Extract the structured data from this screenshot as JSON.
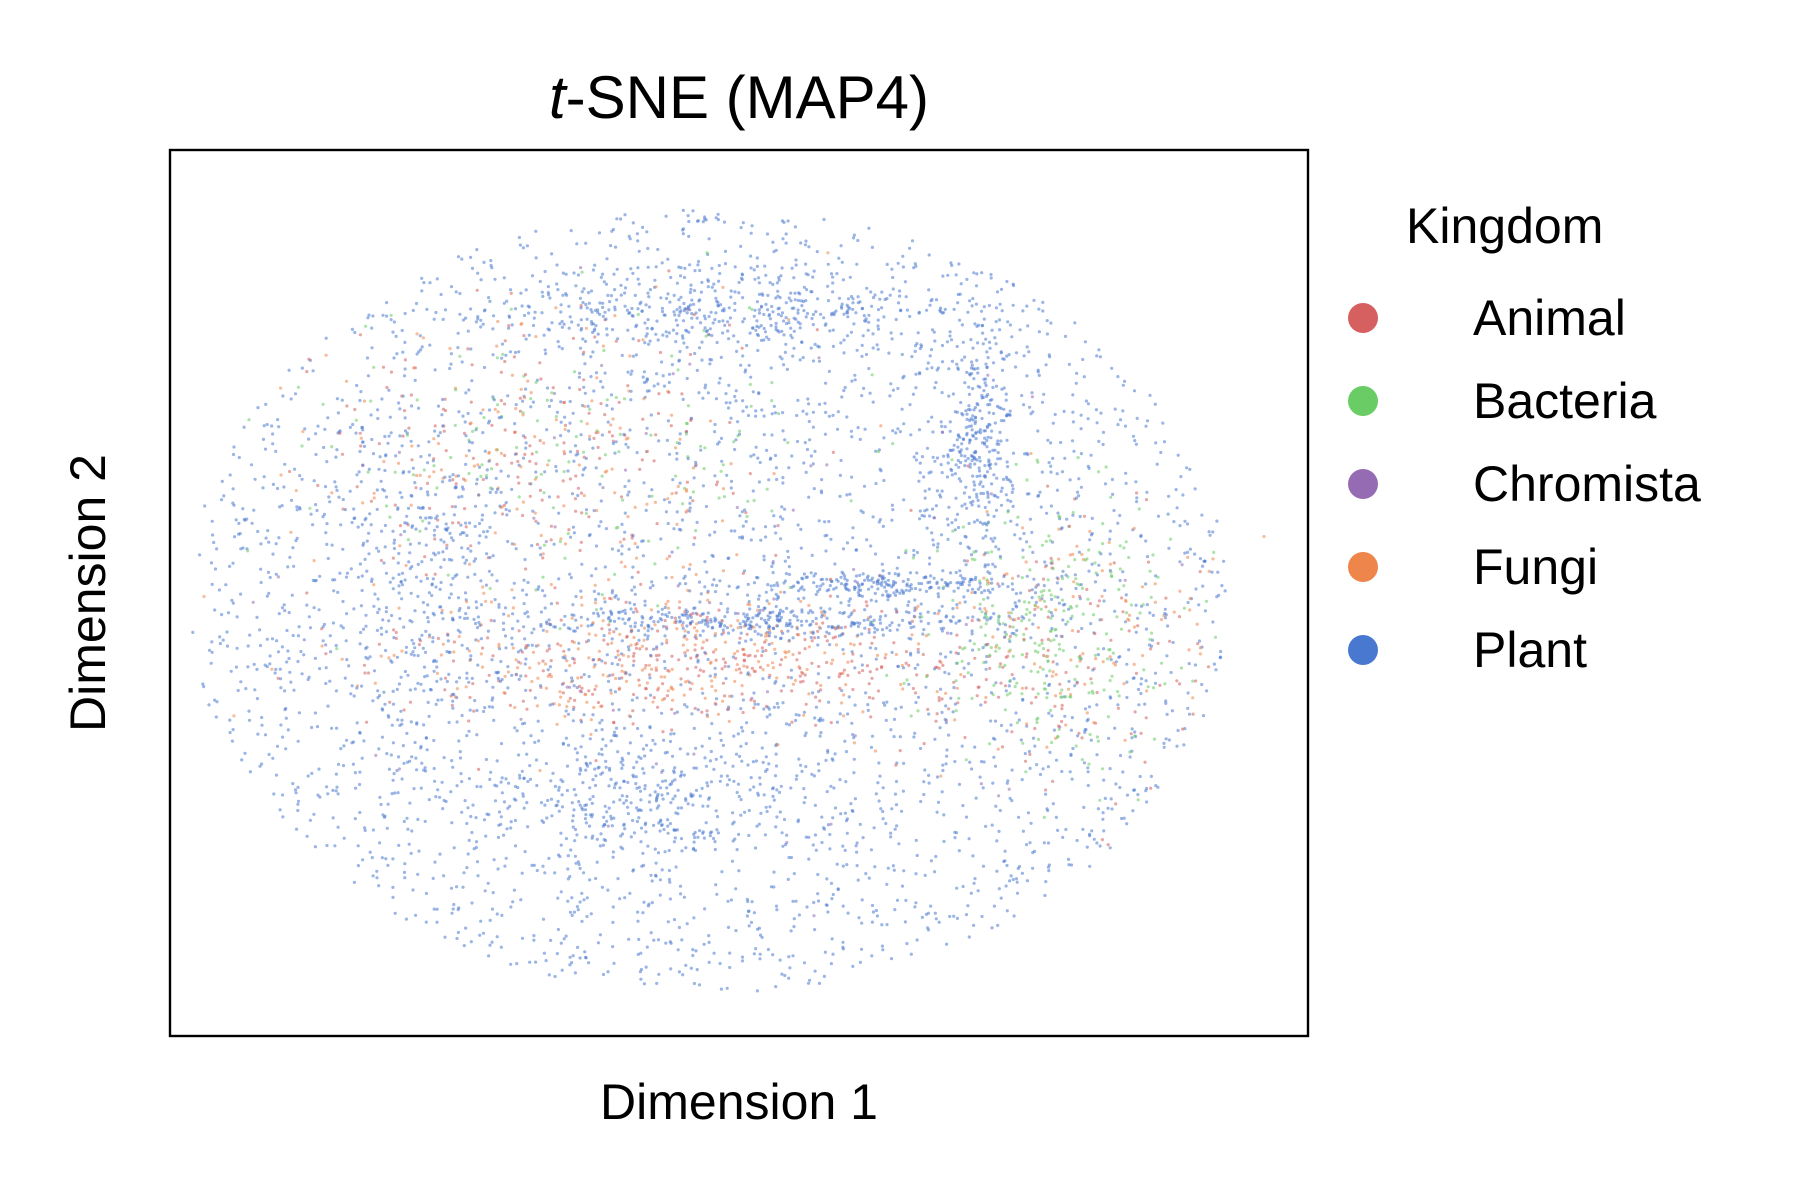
{
  "chart_data": {
    "type": "scatter",
    "title_italic": "t",
    "title_rest": "-SNE (MAP4)",
    "xlabel": "Dimension 1",
    "ylabel": "Dimension 2",
    "xticks": "none",
    "yticks": "none",
    "grid": false,
    "legend": {
      "title": "Kingdom",
      "placement": "outside-right",
      "entries": [
        {
          "name": "Animal",
          "color": "#d65f5f"
        },
        {
          "name": "Bacteria",
          "color": "#6acc64"
        },
        {
          "name": "Chromista",
          "color": "#956cb4"
        },
        {
          "name": "Fungi",
          "color": "#ee854a"
        },
        {
          "name": "Plant",
          "color": "#4878d0"
        }
      ]
    },
    "point_opacity": 0.55,
    "series": [
      {
        "name": "Plant",
        "color": "#4878d0",
        "distribution": "disk",
        "center": [
          -0.06,
          -0.02
        ],
        "radii": [
          1.0,
          0.97
        ],
        "weight": 0.72,
        "clusters": [
          {
            "center": [
              -0.02,
              0.7
            ],
            "spread": [
              0.45,
              0.1
            ],
            "weight": 0.08
          },
          {
            "center": [
              0.05,
              -0.07
            ],
            "spread": [
              0.48,
              0.04
            ],
            "weight": 0.07
          },
          {
            "center": [
              0.46,
              0.38
            ],
            "spread": [
              0.07,
              0.28
            ],
            "weight": 0.06
          },
          {
            "center": [
              -0.2,
              -0.5
            ],
            "spread": [
              0.38,
              0.16
            ],
            "weight": 0.07
          },
          {
            "center": [
              -0.6,
              0.05
            ],
            "spread": [
              0.14,
              0.4
            ],
            "weight": 0.05
          },
          {
            "center": [
              0.25,
              0.02
            ],
            "spread": [
              0.3,
              0.03
            ],
            "weight": 0.04
          }
        ]
      },
      {
        "name": "Animal",
        "color": "#d65f5f",
        "distribution": "clusters",
        "center": [
          0.0,
          -0.18
        ],
        "radii": [
          0.9,
          0.6
        ],
        "weight": 0.09,
        "clusters": [
          {
            "center": [
              -0.05,
              -0.18
            ],
            "spread": [
              0.55,
              0.14
            ],
            "weight": 0.5
          },
          {
            "center": [
              -0.4,
              0.35
            ],
            "spread": [
              0.4,
              0.35
            ],
            "weight": 0.3
          },
          {
            "center": [
              0.6,
              -0.15
            ],
            "spread": [
              0.3,
              0.3
            ],
            "weight": 0.2
          }
        ]
      },
      {
        "name": "Bacteria",
        "color": "#6acc64",
        "distribution": "clusters",
        "center": [
          0.62,
          -0.05
        ],
        "radii": [
          0.35,
          0.5
        ],
        "weight": 0.06,
        "clusters": [
          {
            "center": [
              0.6,
              -0.08
            ],
            "spread": [
              0.22,
              0.3
            ],
            "weight": 0.6
          },
          {
            "center": [
              -0.3,
              0.35
            ],
            "spread": [
              0.5,
              0.35
            ],
            "weight": 0.4
          }
        ]
      },
      {
        "name": "Chromista",
        "color": "#956cb4",
        "distribution": "clusters",
        "center": [
          0.0,
          0.0
        ],
        "radii": [
          0.8,
          0.8
        ],
        "weight": 0.01,
        "clusters": [
          {
            "center": [
              0.0,
              0.0
            ],
            "spread": [
              0.7,
              0.6
            ],
            "weight": 1.0
          }
        ]
      },
      {
        "name": "Fungi",
        "color": "#ee854a",
        "distribution": "clusters",
        "center": [
          0.0,
          -0.15
        ],
        "radii": [
          0.8,
          0.6
        ],
        "weight": 0.08,
        "clusters": [
          {
            "center": [
              -0.1,
              -0.15
            ],
            "spread": [
              0.55,
              0.16
            ],
            "weight": 0.5
          },
          {
            "center": [
              -0.35,
              0.3
            ],
            "spread": [
              0.4,
              0.35
            ],
            "weight": 0.3
          },
          {
            "center": [
              0.65,
              -0.1
            ],
            "spread": [
              0.25,
              0.25
            ],
            "weight": 0.2
          }
        ]
      }
    ]
  }
}
